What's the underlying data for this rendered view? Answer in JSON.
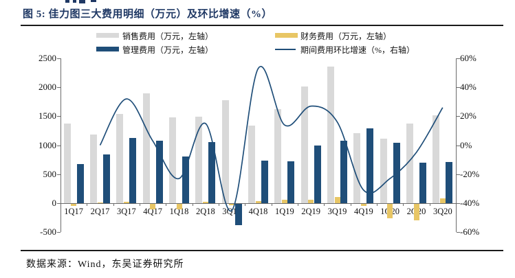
{
  "page": {
    "title": "图 5: 佳力图三大费用明细（万元）及环比增速（%）",
    "source": "数据来源：Wind，东吴证券研究所"
  },
  "colors": {
    "sales_bar": "#D9D9D9",
    "finance_bar": "#E8C665",
    "management_bar": "#1F4E79",
    "growth_line": "#1F4E79",
    "title_text": "#1F3864",
    "axis": "#6a6a6a"
  },
  "legend": {
    "items": [
      {
        "label": "销售费用（万元，左轴）",
        "type": "swatch",
        "color": "#D9D9D9"
      },
      {
        "label": "财务费用（万元，左轴）",
        "type": "swatch",
        "color": "#E8C665"
      },
      {
        "label": "管理费用（万元，左轴）",
        "type": "swatch",
        "color": "#1F4E79"
      },
      {
        "label": "期间费用环比增速（%，右轴）",
        "type": "line",
        "color": "#1F4E79"
      }
    ]
  },
  "chart_data": {
    "type": "bar",
    "title": "佳力图三大费用明细（万元）及环比增速（%）",
    "categories": [
      "1Q17",
      "2Q17",
      "3Q17",
      "4Q17",
      "1Q18",
      "2Q18",
      "3Q18",
      "4Q18",
      "1Q19",
      "2Q19",
      "3Q19",
      "4Q19",
      "1Q20",
      "2Q20",
      "3Q20"
    ],
    "series": [
      {
        "name": "销售费用（万元，左轴）",
        "type": "bar",
        "axis": "left",
        "color": "#D9D9D9",
        "values": [
          1370,
          1180,
          1540,
          1890,
          1480,
          1490,
          1780,
          1340,
          1620,
          2010,
          2360,
          1210,
          1110,
          1380,
          1520
        ]
      },
      {
        "name": "财务费用（万元，左轴）",
        "type": "bar",
        "axis": "left",
        "color": "#E8C665",
        "values": [
          -40,
          10,
          20,
          -100,
          -100,
          20,
          -20,
          40,
          60,
          60,
          110,
          -40,
          -250,
          -280,
          80
        ]
      },
      {
        "name": "管理费用（万元，左轴）",
        "type": "bar",
        "axis": "left",
        "color": "#1F4E79",
        "values": [
          680,
          840,
          1130,
          1080,
          810,
          1050,
          -370,
          730,
          720,
          990,
          1080,
          1290,
          1040,
          700,
          710
        ]
      },
      {
        "name": "期间费用环比增速（%，右轴）",
        "type": "line",
        "axis": "right",
        "color": "#1F4E79",
        "values": [
          null,
          0,
          32,
          3,
          -23,
          15,
          -45,
          53,
          14,
          27,
          16,
          -31,
          -23,
          -5,
          26
        ]
      }
    ],
    "left_axis": {
      "label": "万元",
      "min": -500,
      "max": 2500,
      "step": 500,
      "ticks": [
        "2500",
        "2000",
        "1500",
        "1000",
        "500",
        "0",
        "-500"
      ]
    },
    "right_axis": {
      "label": "%",
      "min": -60,
      "max": 60,
      "step": 20,
      "ticks": [
        "60%",
        "40%",
        "20%",
        "0%",
        "-20%",
        "-40%",
        "-60%"
      ]
    },
    "grid": false,
    "legend_position": "top"
  }
}
